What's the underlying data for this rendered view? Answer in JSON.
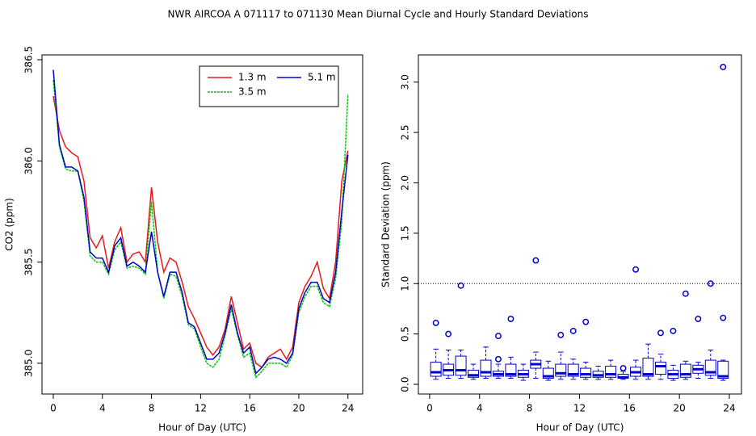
{
  "title": "NWR   AIRCOA A   071117 to 071130   Mean Diurnal Cycle and Hourly Standard Deviations",
  "chart_data": [
    {
      "type": "line",
      "xlabel": "Hour of Day (UTC)",
      "ylabel": "CO2 (ppm)",
      "x": [
        0,
        0.5,
        1,
        1.5,
        2,
        2.5,
        3,
        3.5,
        4,
        4.5,
        5,
        5.5,
        6,
        6.5,
        7,
        7.5,
        8,
        8.5,
        9,
        9.5,
        10,
        10.5,
        11,
        11.5,
        12,
        12.5,
        13,
        13.5,
        14,
        14.5,
        15,
        15.5,
        16,
        16.5,
        17,
        17.5,
        18,
        18.5,
        19,
        19.5,
        20,
        20.5,
        21,
        21.5,
        22,
        22.5,
        23,
        23.5,
        24
      ],
      "series": [
        {
          "name": "1.3 m",
          "color": "#e41a1c",
          "values": [
            386.32,
            386.15,
            386.07,
            386.04,
            386.02,
            385.9,
            385.62,
            385.57,
            385.63,
            385.47,
            385.6,
            385.67,
            385.5,
            385.54,
            385.55,
            385.5,
            385.87,
            385.6,
            385.45,
            385.52,
            385.5,
            385.4,
            385.28,
            385.22,
            385.15,
            385.08,
            385.04,
            385.08,
            385.17,
            385.33,
            385.2,
            385.07,
            385.1,
            385.0,
            384.98,
            385.03,
            385.05,
            385.07,
            385.02,
            385.08,
            385.3,
            385.38,
            385.43,
            385.5,
            385.37,
            385.32,
            385.5,
            385.9,
            386.05
          ]
        },
        {
          "name": "3.5 m",
          "color": "#00cc00",
          "dashed": true,
          "values": [
            386.4,
            386.07,
            385.96,
            385.95,
            385.95,
            385.8,
            385.53,
            385.5,
            385.5,
            385.44,
            385.56,
            385.6,
            385.47,
            385.48,
            385.47,
            385.44,
            385.8,
            385.45,
            385.32,
            385.44,
            385.43,
            385.33,
            385.19,
            385.17,
            385.08,
            385.0,
            384.98,
            385.02,
            385.14,
            385.27,
            385.14,
            385.03,
            385.05,
            384.93,
            384.96,
            385.0,
            385.0,
            385.0,
            384.98,
            385.04,
            385.25,
            385.33,
            385.38,
            385.38,
            385.3,
            385.28,
            385.42,
            385.7,
            386.33
          ]
        },
        {
          "name": "5.1 m",
          "color": "#0000cc",
          "values": [
            386.45,
            386.08,
            385.97,
            385.97,
            385.95,
            385.82,
            385.55,
            385.52,
            385.52,
            385.45,
            385.58,
            385.62,
            385.48,
            385.5,
            385.48,
            385.45,
            385.65,
            385.45,
            385.33,
            385.45,
            385.45,
            385.35,
            385.2,
            385.18,
            385.1,
            385.02,
            385.02,
            385.05,
            385.15,
            385.29,
            385.15,
            385.05,
            385.08,
            384.95,
            384.98,
            385.02,
            385.03,
            385.02,
            385.0,
            385.05,
            385.27,
            385.35,
            385.4,
            385.4,
            385.32,
            385.3,
            385.45,
            385.75,
            386.03
          ]
        }
      ],
      "xlim": [
        -0.92,
        25.2
      ],
      "ylim": [
        384.848,
        386.524
      ],
      "xticks": [
        0,
        4,
        8,
        12,
        16,
        20,
        24
      ],
      "yticks": [
        {
          "value": 385,
          "label": "385.0"
        },
        385.5,
        {
          "value": 386,
          "label": "386.0"
        },
        386.5
      ],
      "legend": "topright"
    },
    {
      "type": "box",
      "xlabel": "Hour of Day (UTC)",
      "ylabel": "Standard Deviation (ppm)",
      "color": "#0000cc",
      "x": [
        0.5,
        1.5,
        2.5,
        3.5,
        4.5,
        5.5,
        6.5,
        7.5,
        8.5,
        9.5,
        10.5,
        11.5,
        12.5,
        13.5,
        14.5,
        15.5,
        16.5,
        17.5,
        18.5,
        19.5,
        20.5,
        21.5,
        22.5,
        23.5
      ],
      "boxes": [
        {
          "min": 0.05,
          "q1": 0.08,
          "median": 0.12,
          "q3": 0.22,
          "max": 0.35,
          "outliers": [
            0.61
          ]
        },
        {
          "min": 0.06,
          "q1": 0.09,
          "median": 0.14,
          "q3": 0.2,
          "max": 0.34,
          "outliers": [
            0.5
          ]
        },
        {
          "min": 0.06,
          "q1": 0.09,
          "median": 0.14,
          "q3": 0.28,
          "max": 0.34,
          "outliers": [
            0.98
          ]
        },
        {
          "min": 0.05,
          "q1": 0.07,
          "median": 0.09,
          "q3": 0.14,
          "max": 0.2,
          "outliers": []
        },
        {
          "min": 0.06,
          "q1": 0.08,
          "median": 0.12,
          "q3": 0.24,
          "max": 0.37,
          "outliers": []
        },
        {
          "min": 0.06,
          "q1": 0.08,
          "median": 0.1,
          "q3": 0.13,
          "max": 0.2,
          "outliers": [
            0.48,
            0.25
          ]
        },
        {
          "min": 0.06,
          "q1": 0.08,
          "median": 0.1,
          "q3": 0.2,
          "max": 0.27,
          "outliers": [
            0.65
          ]
        },
        {
          "min": 0.04,
          "q1": 0.07,
          "median": 0.1,
          "q3": 0.14,
          "max": 0.2,
          "outliers": []
        },
        {
          "min": 0.06,
          "q1": 0.16,
          "median": 0.2,
          "q3": 0.24,
          "max": 0.32,
          "outliers": [
            1.23
          ]
        },
        {
          "min": 0.04,
          "q1": 0.06,
          "median": 0.08,
          "q3": 0.16,
          "max": 0.23,
          "outliers": []
        },
        {
          "min": 0.05,
          "q1": 0.08,
          "median": 0.11,
          "q3": 0.2,
          "max": 0.32,
          "outliers": [
            0.49
          ]
        },
        {
          "min": 0.05,
          "q1": 0.08,
          "median": 0.1,
          "q3": 0.2,
          "max": 0.25,
          "outliers": [
            0.53
          ]
        },
        {
          "min": 0.05,
          "q1": 0.07,
          "median": 0.1,
          "q3": 0.16,
          "max": 0.22,
          "outliers": [
            0.62
          ]
        },
        {
          "min": 0.05,
          "q1": 0.07,
          "median": 0.09,
          "q3": 0.13,
          "max": 0.18,
          "outliers": []
        },
        {
          "min": 0.05,
          "q1": 0.07,
          "median": 0.1,
          "q3": 0.18,
          "max": 0.24,
          "outliers": []
        },
        {
          "min": 0.05,
          "q1": 0.06,
          "median": 0.07,
          "q3": 0.1,
          "max": 0.13,
          "outliers": [
            0.16
          ]
        },
        {
          "min": 0.05,
          "q1": 0.08,
          "median": 0.12,
          "q3": 0.17,
          "max": 0.24,
          "outliers": [
            1.14
          ]
        },
        {
          "min": 0.05,
          "q1": 0.08,
          "median": 0.1,
          "q3": 0.26,
          "max": 0.4,
          "outliers": []
        },
        {
          "min": 0.05,
          "q1": 0.1,
          "median": 0.18,
          "q3": 0.22,
          "max": 0.3,
          "outliers": [
            0.51
          ]
        },
        {
          "min": 0.04,
          "q1": 0.06,
          "median": 0.1,
          "q3": 0.14,
          "max": 0.19,
          "outliers": [
            0.53
          ]
        },
        {
          "min": 0.05,
          "q1": 0.07,
          "median": 0.1,
          "q3": 0.2,
          "max": 0.23,
          "outliers": [
            0.9
          ]
        },
        {
          "min": 0.06,
          "q1": 0.11,
          "median": 0.15,
          "q3": 0.19,
          "max": 0.22,
          "outliers": [
            0.65
          ]
        },
        {
          "min": 0.06,
          "q1": 0.09,
          "median": 0.12,
          "q3": 0.24,
          "max": 0.34,
          "outliers": [
            1.0
          ]
        },
        {
          "min": 0.04,
          "q1": 0.06,
          "median": 0.08,
          "q3": 0.23,
          "max": 0.24,
          "outliers": [
            0.66,
            3.15
          ]
        }
      ],
      "reference_line": 1,
      "xlim": [
        -0.9,
        24.97
      ],
      "ylim": [
        -0.096,
        3.27
      ],
      "xticks": [
        0,
        4,
        8,
        12,
        16,
        20,
        24
      ],
      "yticks": [
        {
          "value": 0,
          "label": "0.0"
        },
        0.5,
        {
          "value": 1,
          "label": "1.0"
        },
        1.5,
        {
          "value": 2,
          "label": "2.0"
        },
        2.5,
        {
          "value": 3,
          "label": "3.0"
        }
      ]
    }
  ]
}
